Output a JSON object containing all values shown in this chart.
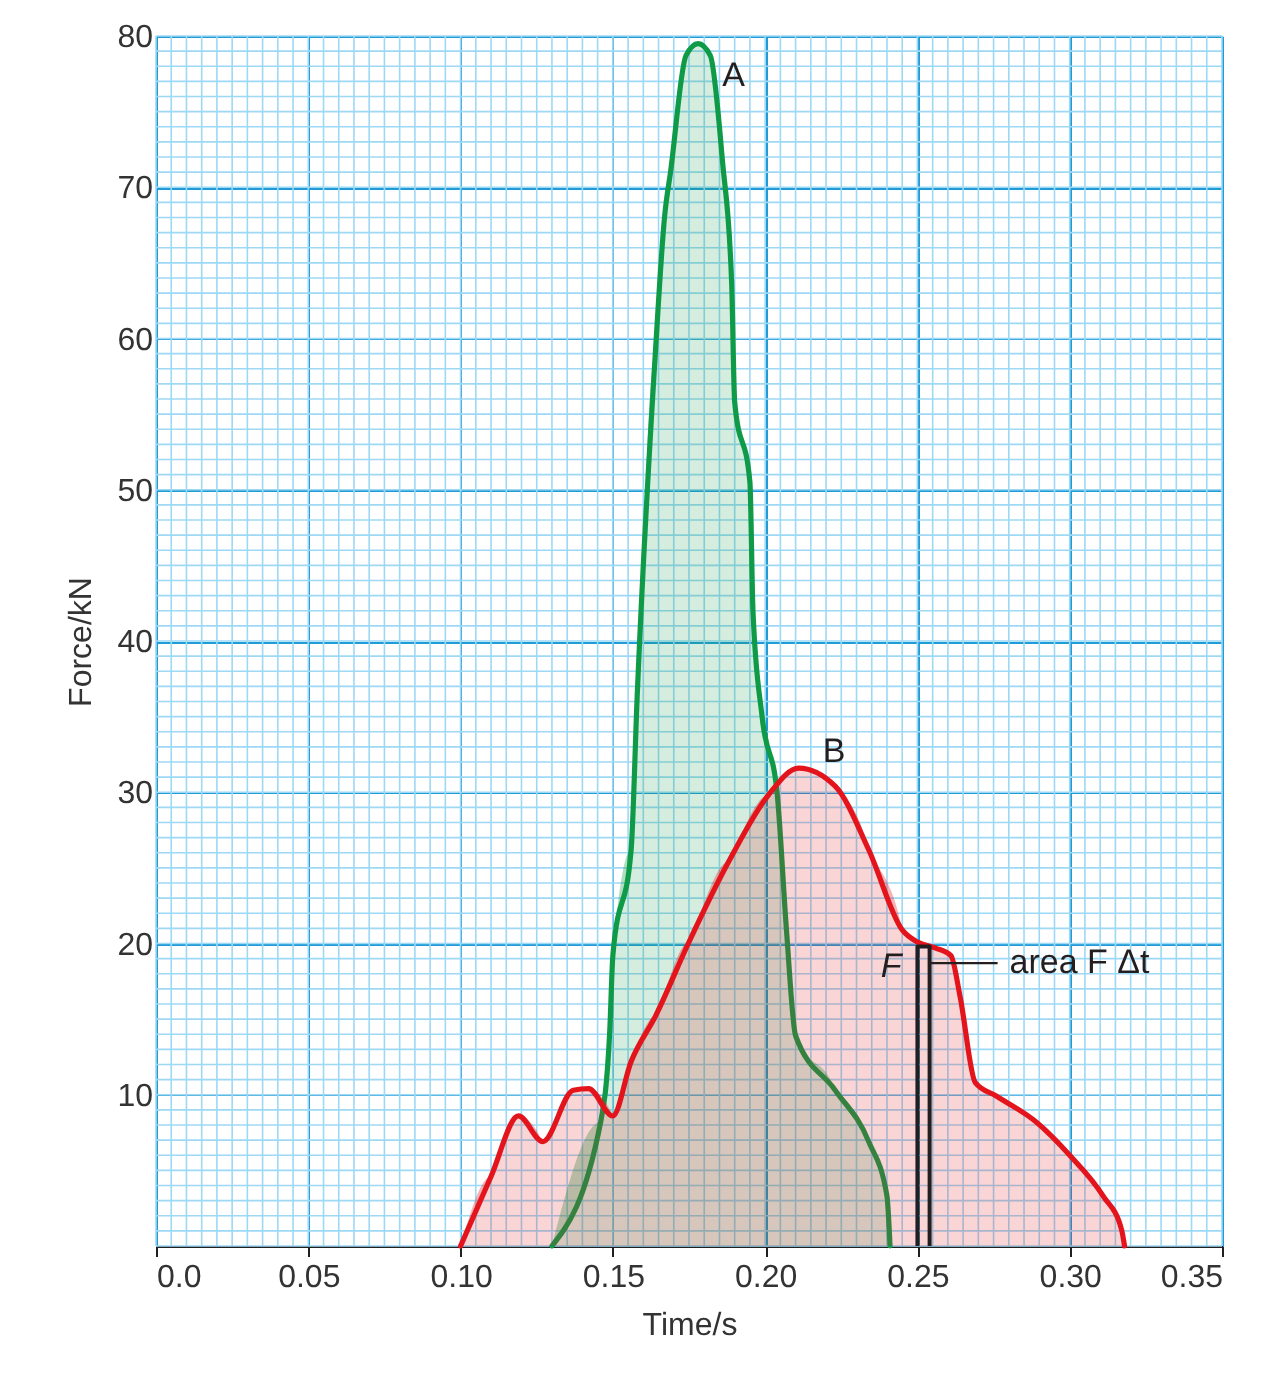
{
  "chart_data": {
    "type": "area",
    "xlabel": "Time/s",
    "ylabel": "Force/kN",
    "xlim": [
      0,
      0.35
    ],
    "ylim": [
      0,
      80
    ],
    "xticks": [
      {
        "value": 0,
        "label": "0.0"
      },
      0.05,
      {
        "value": 0.1,
        "label": "0.10"
      },
      0.15,
      {
        "value": 0.2,
        "label": "0.20"
      },
      0.25,
      {
        "value": 0.3,
        "label": "0.30"
      },
      0.35
    ],
    "yticks": [
      10,
      20,
      30,
      40,
      50,
      60,
      70,
      80
    ],
    "grid": true,
    "legend": false,
    "series": [
      {
        "name": "A",
        "color": "#0f9a48",
        "x": [
          0.13,
          0.146,
          0.149,
          0.15,
          0.156,
          0.158,
          0.164,
          0.167,
          0.169,
          0.174,
          0.178,
          0.182,
          0.186,
          0.189,
          0.19,
          0.195,
          0.196,
          0.199,
          0.204,
          0.207,
          0.21,
          0.223,
          0.234,
          0.24,
          0.241
        ],
        "values": [
          0,
          8.2,
          14.3,
          19.2,
          26.2,
          36.4,
          59.2,
          68.1,
          71.1,
          78.7,
          79.5,
          78.7,
          71.7,
          63.7,
          55.8,
          50.5,
          42.0,
          35.0,
          29.8,
          20.9,
          13.9,
          10.3,
          6.9,
          3.3,
          0
        ]
      },
      {
        "name": "B",
        "color": "#e3141b",
        "x": [
          0.1,
          0.11,
          0.119,
          0.127,
          0.137,
          0.142,
          0.15,
          0.156,
          0.164,
          0.175,
          0.188,
          0.201,
          0.211,
          0.223,
          0.234,
          0.245,
          0.25,
          0.256,
          0.261,
          0.264,
          0.269,
          0.276,
          0.289,
          0.3,
          0.311,
          0.317,
          0.318
        ],
        "values": [
          0,
          4.6,
          8.6,
          6.9,
          10.3,
          10.4,
          8.6,
          12.2,
          15.2,
          20.1,
          25.4,
          29.8,
          31.6,
          30.4,
          26.2,
          20.9,
          20.1,
          19.7,
          19.2,
          16.5,
          10.8,
          9.9,
          8.2,
          6.0,
          3.3,
          1.1,
          0
        ]
      },
      {
        "type": "line",
        "color": "#231f20",
        "x": [
          0.25,
          0.25,
          0.254,
          0.254
        ],
        "values": [
          0,
          19.8,
          19.8,
          0
        ]
      }
    ],
    "annotations": [
      {
        "text": "F",
        "x": 0.25,
        "y": 19.8
      },
      {
        "text": "area F Δt",
        "x": 0.254,
        "y": 18.7
      }
    ]
  }
}
